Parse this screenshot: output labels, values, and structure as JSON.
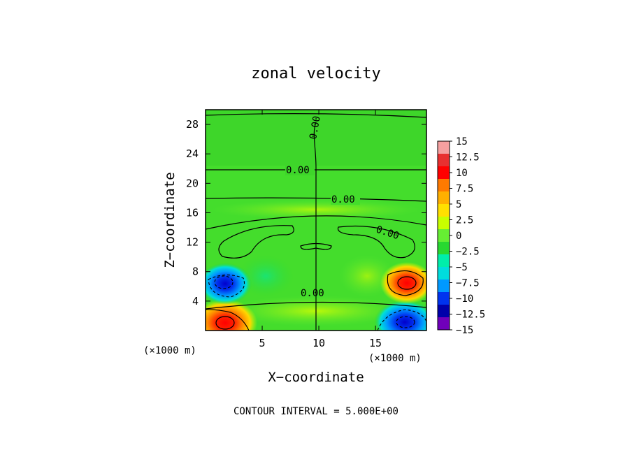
{
  "chart_data": {
    "type": "heatmap",
    "title": "zonal velocity",
    "xlabel": "X−coordinate",
    "ylabel": "Z−coordinate",
    "x_unit": "(×1000 m)",
    "y_unit": "(×1000 m)",
    "xlim": [
      0,
      19.5
    ],
    "ylim": [
      0,
      30
    ],
    "x_ticks": [
      5,
      10,
      15
    ],
    "y_ticks": [
      4,
      8,
      12,
      16,
      20,
      24,
      28
    ],
    "footer": "CONTOUR INTERVAL = 5.000E+00",
    "colorbar": {
      "labels": [
        "15",
        "12.5",
        "10",
        "7.5",
        "5",
        "2.5",
        "0",
        "−2.5",
        "−5",
        "−7.5",
        "−10",
        "−12.5",
        "−15"
      ],
      "colors": [
        "#f5a0a0",
        "#e83030",
        "#ff0000",
        "#ff7a00",
        "#ffb000",
        "#ffe000",
        "#c8ff00",
        "#66ee33",
        "#28d830",
        "#00eeaa",
        "#00dddd",
        "#0099ff",
        "#0033ee",
        "#0000aa",
        "#7000bb"
      ]
    },
    "contour_labels": [
      "0.00",
      "0.00",
      "0.00",
      "0.00",
      "0.00"
    ],
    "features": [
      {
        "name": "positive-max-bottom-left",
        "x": 1.8,
        "z": 1.0,
        "value": 14
      },
      {
        "name": "negative-min-bottom-right",
        "x": 17.7,
        "z": 1.0,
        "value": -13
      },
      {
        "name": "negative-min-left",
        "x": 1.7,
        "z": 6.5,
        "value": -13
      },
      {
        "name": "positive-max-right",
        "x": 17.9,
        "z": 6.5,
        "value": 13
      }
    ]
  }
}
